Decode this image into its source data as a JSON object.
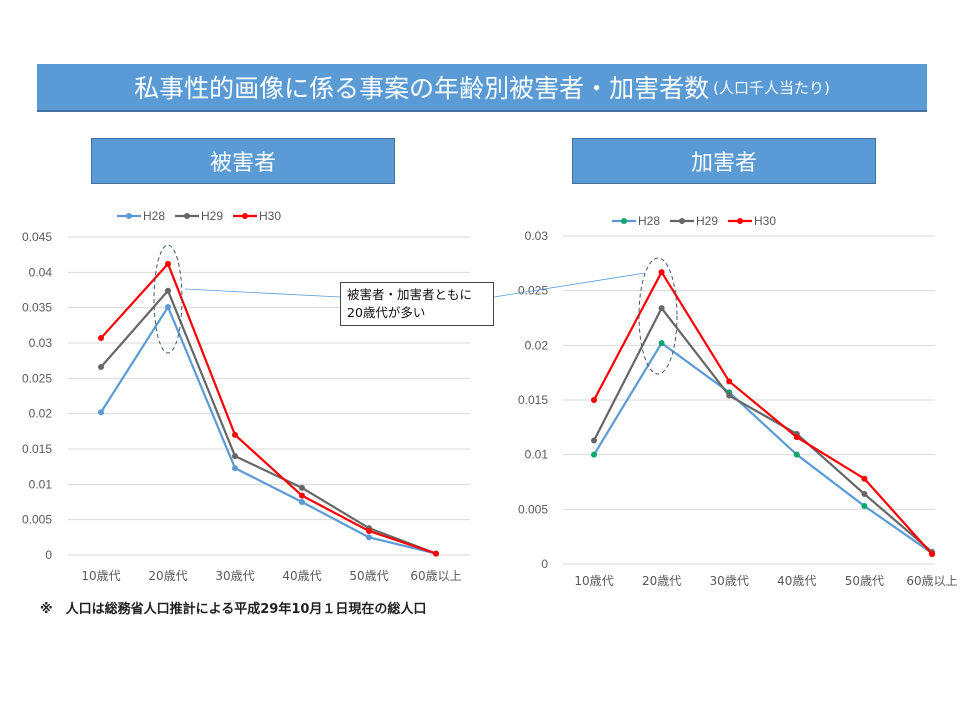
{
  "title": {
    "main": "私事性的画像に係る事案の年齢別被害者・加害者数",
    "suffix": "(人口千人当たり)"
  },
  "panels": {
    "victims": "被害者",
    "perpetrators": "加害者"
  },
  "annotation": {
    "line1": "被害者・加害者ともに",
    "line2": "20歳代が多い"
  },
  "footnote": "※　人口は総務省人口推計による平成29年10月１日現在の総人口",
  "chart_data": [
    {
      "type": "line",
      "title": "被害者",
      "categories": [
        "10歳代",
        "20歳代",
        "30歳代",
        "40歳代",
        "50歳代",
        "60歳以上"
      ],
      "ylim": [
        0,
        0.045
      ],
      "yticks": [
        "0",
        "0.005",
        "0.01",
        "0.015",
        "0.02",
        "0.025",
        "0.03",
        "0.035",
        "0.04",
        "0.045"
      ],
      "grid": true,
      "legend": "top",
      "series": [
        {
          "name": "H28",
          "color": "#5b9bd5",
          "marker": "#5b9bd5",
          "values": [
            0.0202,
            0.0351,
            0.0123,
            0.0075,
            0.0025,
            0.0002
          ]
        },
        {
          "name": "H29",
          "color": "#666666",
          "marker": "#666666",
          "values": [
            0.0266,
            0.0374,
            0.014,
            0.0095,
            0.0038,
            0.0002
          ]
        },
        {
          "name": "H30",
          "color": "#ff0000",
          "marker": "#ff0000",
          "values": [
            0.0307,
            0.0412,
            0.017,
            0.0084,
            0.0034,
            0.0002
          ]
        }
      ]
    },
    {
      "type": "line",
      "title": "加害者",
      "categories": [
        "10歳代",
        "20歳代",
        "30歳代",
        "40歳代",
        "50歳代",
        "60歳以上"
      ],
      "ylim": [
        0,
        0.03
      ],
      "yticks": [
        "0",
        "0.005",
        "0.01",
        "0.015",
        "0.02",
        "0.025",
        "0.03"
      ],
      "grid": true,
      "legend": "top",
      "series": [
        {
          "name": "H28",
          "color": "#5b9bd5",
          "marker": "#00a86b",
          "values": [
            0.01,
            0.0202,
            0.0157,
            0.01,
            0.0053,
            0.001
          ]
        },
        {
          "name": "H29",
          "color": "#666666",
          "marker": "#666666",
          "values": [
            0.0113,
            0.0234,
            0.0154,
            0.0119,
            0.0064,
            0.0011
          ]
        },
        {
          "name": "H30",
          "color": "#ff0000",
          "marker": "#ff0000",
          "values": [
            0.015,
            0.0267,
            0.0167,
            0.0116,
            0.0078,
            0.0009
          ]
        }
      ]
    }
  ]
}
